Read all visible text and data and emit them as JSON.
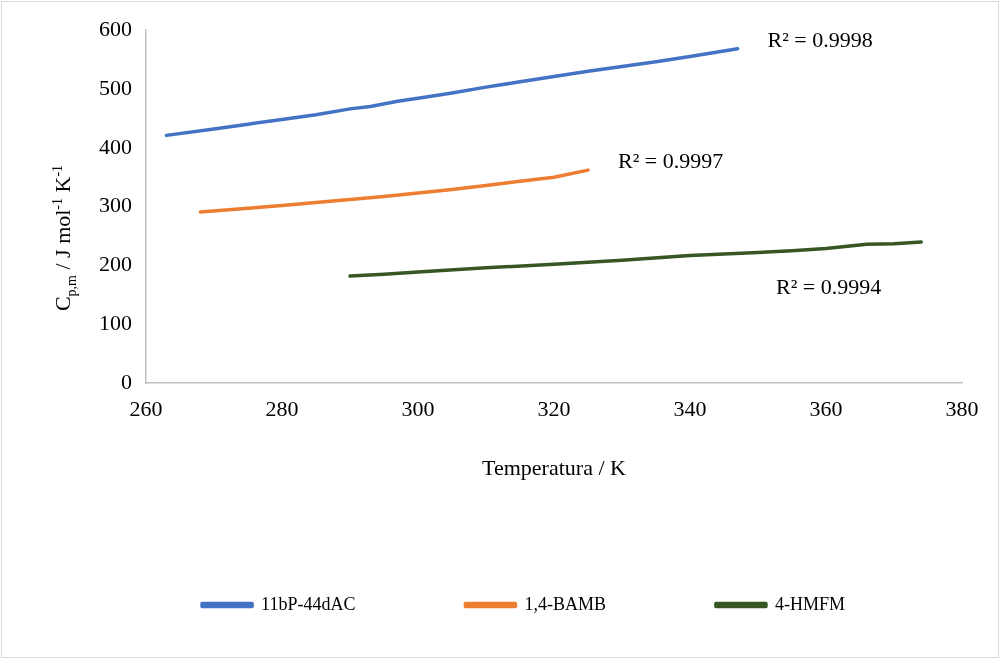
{
  "chart_data": {
    "type": "line",
    "xlabel": "Temperatura / K",
    "ylabel": "C$_{p,m}$ / J mol$^{-1}$ K$^{-1}$",
    "xlim": [
      260,
      380
    ],
    "xticks": [
      260,
      280,
      300,
      320,
      340,
      360,
      380
    ],
    "ylim": [
      0,
      600
    ],
    "yticks": [
      0,
      100,
      200,
      300,
      400,
      500,
      600
    ],
    "grid": false,
    "legend": "bottom",
    "marker": "none",
    "line_style": "solid",
    "series": [
      {
        "name": "11bP-44dAC",
        "color": "#4472c4",
        "x": [
          263,
          270,
          275,
          280,
          285,
          290,
          293,
          297,
          300,
          305,
          310,
          315,
          320,
          325,
          330,
          335,
          340,
          347
        ],
        "values": [
          421,
          432,
          440,
          448,
          456,
          466,
          470,
          479,
          484,
          493,
          503,
          512,
          521,
          530,
          538,
          546,
          555,
          568
        ]
      },
      {
        "name": "1,4-BAMB",
        "color": "#ed7d31",
        "x": [
          268,
          275,
          280,
          285,
          290,
          295,
          300,
          305,
          310,
          315,
          320,
          325
        ],
        "values": [
          291,
          297,
          302,
          307,
          312,
          317,
          323,
          329,
          336,
          343,
          350,
          362
        ]
      },
      {
        "name": "4-HMFM",
        "color": "#375623",
        "x": [
          290,
          295,
          300,
          310,
          320,
          330,
          340,
          350,
          355,
          360,
          366,
          370,
          374
        ],
        "values": [
          182,
          185,
          189,
          196,
          202,
          209,
          217,
          222,
          225,
          229,
          236,
          237,
          240
        ]
      }
    ],
    "annotations": [
      "R² = 0.9998",
      "R² = 0.9997",
      "R² = 0.9994"
    ]
  }
}
